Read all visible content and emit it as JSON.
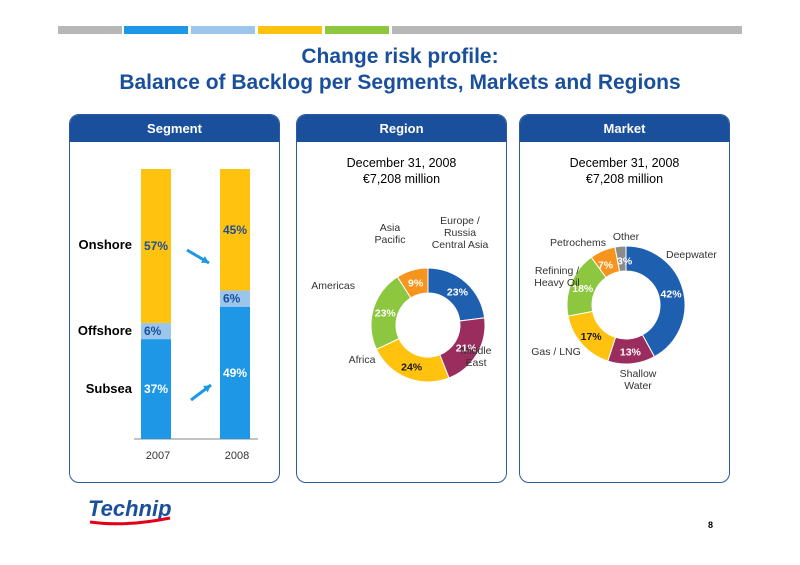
{
  "title": {
    "line1": "Change risk profile:",
    "line2": "Balance of Backlog per Segments, Markets and Regions"
  },
  "colors": {
    "title": "#1a4f9c",
    "header": "#1a4f9c",
    "onshore": "#ffc20e",
    "offshore": "#9cc5ec",
    "subsea": "#1e98e6",
    "europe": "#1f5fb0",
    "middle_east": "#9b2c5e",
    "africa": "#ffc20e",
    "americas": "#8dc63f",
    "asia": "#f7941d",
    "other": "#8c8c8c"
  },
  "panels": {
    "segment": {
      "header": "Segment"
    },
    "region": {
      "header": "Region",
      "date": "December 31, 2008",
      "amount": "€7,208 million"
    },
    "market": {
      "header": "Market",
      "date": "December 31, 2008",
      "amount": "€7,208 million"
    }
  },
  "chart_data": [
    {
      "type": "bar",
      "stacked": true,
      "categories": [
        "2007",
        "2008"
      ],
      "series": [
        {
          "name": "Subsea",
          "values": [
            37,
            49
          ],
          "labels": [
            "37%",
            "49%"
          ]
        },
        {
          "name": "Offshore",
          "values": [
            6,
            6
          ],
          "labels": [
            "6%",
            "6%"
          ]
        },
        {
          "name": "Onshore",
          "values": [
            57,
            45
          ],
          "labels": [
            "57%",
            "45%"
          ]
        }
      ],
      "ylim": [
        0,
        100
      ]
    },
    {
      "type": "pie",
      "donut": true,
      "slices": [
        {
          "label": [
            "Europe /",
            "Russia",
            "Central Asia"
          ],
          "value": 23,
          "text": "23%",
          "color": "europe"
        },
        {
          "label": [
            "Middle",
            "East"
          ],
          "value": 21,
          "text": "21%",
          "color": "middle_east"
        },
        {
          "label": [
            "Africa"
          ],
          "value": 24,
          "text": "24%",
          "color": "africa"
        },
        {
          "label": [
            "Americas"
          ],
          "value": 23,
          "text": "23%",
          "color": "americas"
        },
        {
          "label": [
            "Asia",
            "Pacific"
          ],
          "value": 9,
          "text": "9%",
          "color": "asia"
        }
      ]
    },
    {
      "type": "pie",
      "donut": true,
      "slices": [
        {
          "label": [
            "Deepwater"
          ],
          "value": 42,
          "text": "42%",
          "color": "europe"
        },
        {
          "label": [
            "Shallow",
            "Water"
          ],
          "value": 13,
          "text": "13%",
          "color": "middle_east"
        },
        {
          "label": [
            "Gas / LNG"
          ],
          "value": 17,
          "text": "17%",
          "color": "africa"
        },
        {
          "label": [
            "Refining /",
            "Heavy Oil"
          ],
          "value": 18,
          "text": "18%",
          "color": "americas"
        },
        {
          "label": [
            "Petrochems"
          ],
          "value": 7,
          "text": "7%",
          "color": "asia"
        },
        {
          "label": [
            "Other"
          ],
          "value": 3,
          "text": "3%",
          "color": "other"
        }
      ]
    }
  ],
  "logo": {
    "text": "Technip"
  },
  "page_number": "8"
}
